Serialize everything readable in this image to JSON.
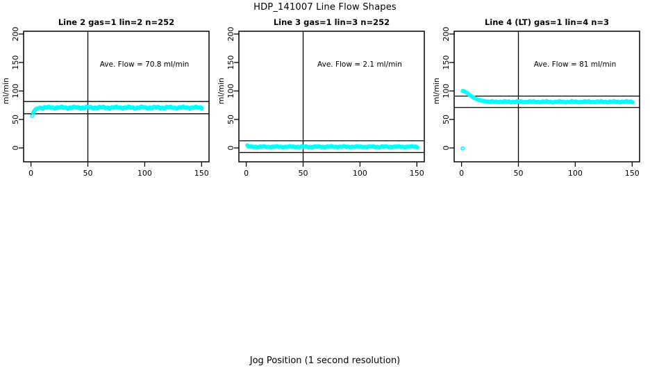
{
  "figure": {
    "title": "HDP_141007  Line Flow Shapes",
    "xlabel": "Jog Position (1 second resolution)",
    "point_color": "#00FFFF",
    "axis_color": "#000000",
    "background": "#FFFFFF"
  },
  "chart_data": [
    {
      "type": "scatter",
      "title": "Line 2 gas=1 lin=2 n=252",
      "annotation": "Ave. Flow =  70.8  ml/min",
      "ave_flow_ml_min": 70.8,
      "ylabel": "ml/min",
      "xlim": [
        0,
        150
      ],
      "ylim": [
        0,
        200
      ],
      "xticks": [
        0,
        50,
        100,
        150
      ],
      "yticks": [
        0,
        50,
        100,
        150,
        200
      ],
      "vline_x": 50,
      "hlines": [
        81.5,
        60
      ],
      "outlier_points": [],
      "transient_points": [
        [
          1,
          56
        ],
        [
          2,
          62
        ],
        [
          2.7,
          64.5
        ],
        [
          3.5,
          66.5
        ],
        [
          4.3,
          68
        ],
        [
          5.2,
          69
        ],
        [
          6.2,
          69.8
        ],
        [
          7.3,
          70.3
        ],
        [
          8.5,
          70.6
        ]
      ],
      "flat_segment": {
        "x_start": 9.5,
        "x_end": 150.5,
        "x_step": 0.7,
        "value": 70.8,
        "jitter": 1.8
      }
    },
    {
      "type": "scatter",
      "title": "Line 3 gas=1 lin=3 n=252",
      "annotation": "Ave. Flow =  2.1  ml/min",
      "ave_flow_ml_min": 2.1,
      "ylabel": "ml/min",
      "xlim": [
        0,
        150
      ],
      "ylim": [
        0,
        200
      ],
      "xticks": [
        0,
        50,
        100,
        150
      ],
      "yticks": [
        0,
        50,
        100,
        150,
        200
      ],
      "vline_x": 50,
      "hlines": [
        12.5,
        -8
      ],
      "outlier_points": [],
      "transient_points": [
        [
          1,
          4.5
        ],
        [
          1.6,
          3.5
        ]
      ],
      "flat_segment": {
        "x_start": 2,
        "x_end": 150.5,
        "x_step": 0.7,
        "value": 2,
        "jitter": 1.1
      }
    },
    {
      "type": "scatter",
      "title": "Line 4 (LT) gas=1 lin=4 n=3",
      "annotation": "Ave. Flow =  81  ml/min",
      "ave_flow_ml_min": 81,
      "ylabel": "ml/min",
      "xlim": [
        0,
        150
      ],
      "ylim": [
        0,
        200
      ],
      "xticks": [
        0,
        50,
        100,
        150
      ],
      "yticks": [
        0,
        50,
        100,
        150,
        200
      ],
      "vline_x": 50,
      "hlines": [
        91,
        71
      ],
      "outlier_points": [
        [
          1,
          -1
        ]
      ],
      "transient_points": [
        [
          1,
          100
        ],
        [
          1.6,
          100
        ],
        [
          2.2,
          99.6
        ],
        [
          3,
          98.8
        ],
        [
          4,
          97.6
        ],
        [
          5,
          96.2
        ],
        [
          6,
          94.6
        ],
        [
          7,
          93
        ],
        [
          8,
          91.6
        ],
        [
          9,
          90.3
        ],
        [
          10,
          89.1
        ],
        [
          11,
          88
        ],
        [
          12,
          87
        ],
        [
          13,
          86.1
        ],
        [
          14,
          85.3
        ],
        [
          15,
          84.6
        ],
        [
          16,
          84
        ],
        [
          17,
          83.4
        ],
        [
          18,
          82.9
        ],
        [
          19,
          82.5
        ],
        [
          20,
          82.1
        ],
        [
          21,
          81.8
        ],
        [
          22,
          81.5
        ]
      ],
      "flat_segment": {
        "x_start": 23,
        "x_end": 150.5,
        "x_step": 0.7,
        "value": 81,
        "jitter": 1.2
      }
    }
  ]
}
